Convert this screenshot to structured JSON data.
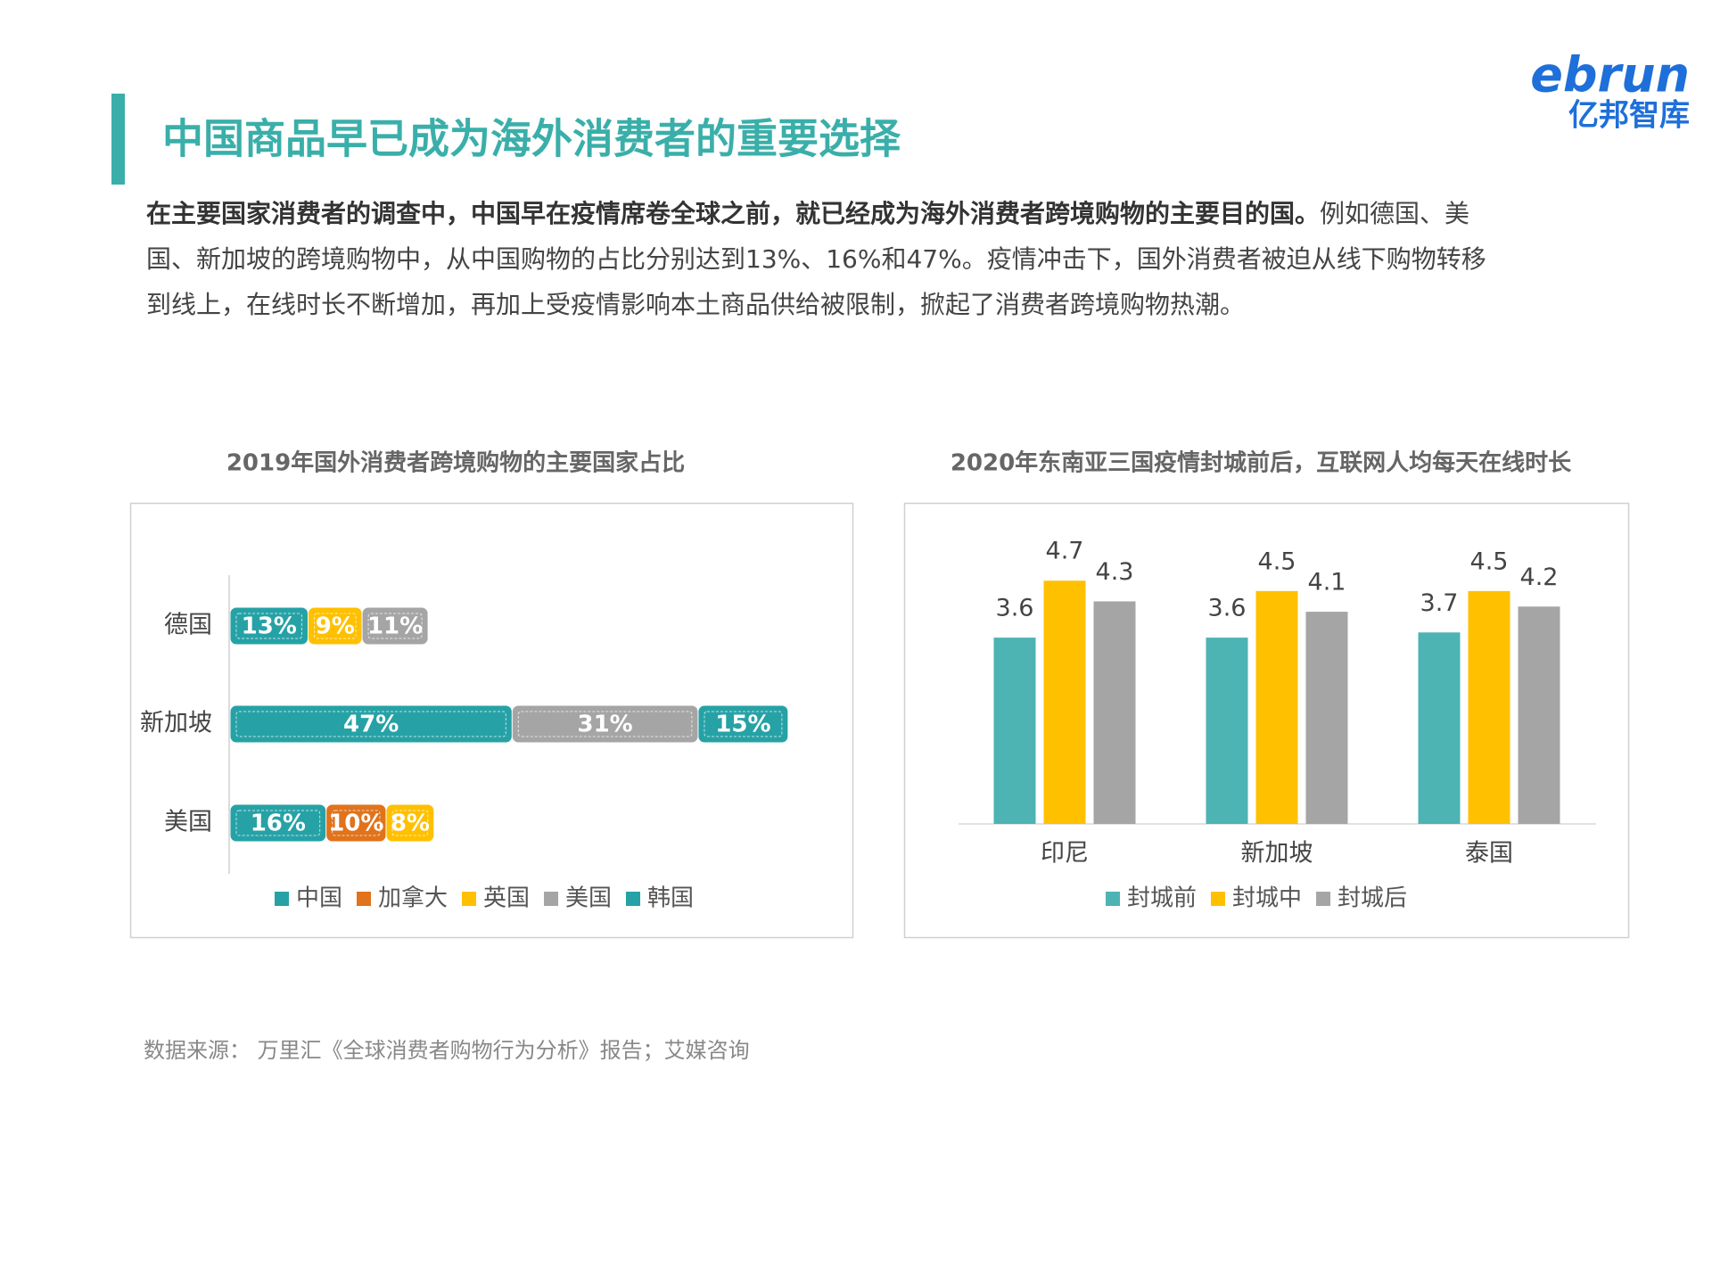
{
  "header": {
    "title": "中国商品早已成为海外消费者的重要选择"
  },
  "logo": {
    "brand": "ebrun",
    "name": "亿邦智库"
  },
  "paragraph": {
    "bold": "在主要国家消费者的调查中，中国早在疫情席卷全球之前，就已经成为海外消费者跨境购物的主要目的国。",
    "text": "例如德国、美国、新加坡的跨境购物中，从中国购物的占比分别达到13%、16%和47%。疫情冲击下，国外消费者被迫从线下购物转移到线上，在线时长不断增加，再加上受疫情影响本土商品供给被限制，掀起了消费者跨境购物热潮。"
  },
  "chart_data": [
    {
      "type": "bar",
      "orientation": "horizontal",
      "stacked": true,
      "title": "2019年国外消费者跨境购物的主要国家占比",
      "categories": [
        "德国",
        "新加坡",
        "美国"
      ],
      "series": [
        {
          "name": "中国",
          "color": "#26a2a6",
          "values": [
            13,
            47,
            16
          ],
          "value_labels": [
            "13%",
            "47%",
            "16%"
          ]
        },
        {
          "name": "加拿大",
          "color": "#e0731c",
          "values": [
            null,
            null,
            10
          ],
          "value_labels": [
            null,
            null,
            "10%"
          ]
        },
        {
          "name": "英国",
          "color": "#ffc000",
          "values": [
            9,
            null,
            8
          ],
          "value_labels": [
            "9%",
            null,
            "8%"
          ]
        },
        {
          "name": "美国",
          "color": "#a5a5a5",
          "values": [
            11,
            31,
            null
          ],
          "value_labels": [
            "11%",
            "31%",
            null
          ]
        },
        {
          "name": "韩国",
          "color": "#26a2a6",
          "values": [
            null,
            15,
            null
          ],
          "value_labels": [
            null,
            "15%",
            null
          ]
        }
      ]
    },
    {
      "type": "bar",
      "orientation": "vertical",
      "stacked": false,
      "title": "2020年东南亚三国疫情封城前后，互联网人均每天在线时长",
      "categories": [
        "印尼",
        "新加坡",
        "泰国"
      ],
      "series": [
        {
          "name": "封城前",
          "color": "#4db3b3",
          "values": [
            3.6,
            3.6,
            3.7
          ]
        },
        {
          "name": "封城中",
          "color": "#ffc000",
          "values": [
            4.7,
            4.5,
            4.5
          ]
        },
        {
          "name": "封城后",
          "color": "#a5a5a5",
          "values": [
            4.3,
            4.1,
            4.2
          ]
        }
      ]
    }
  ],
  "source": "数据来源： 万里汇《全球消费者购物行为分析》报告；艾媒咨询"
}
